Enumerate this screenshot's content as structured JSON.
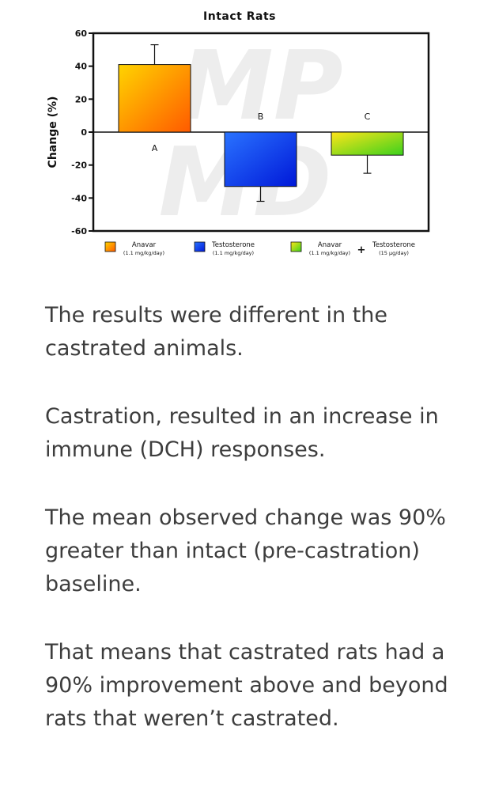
{
  "chart_data": {
    "type": "bar",
    "title": "Intact Rats",
    "ylabel": "Change (%)",
    "xlabel": "",
    "ylim": [
      -60,
      60
    ],
    "yticks": [
      60,
      40,
      20,
      0,
      -20,
      -40,
      -60
    ],
    "grid": false,
    "categories": [
      "Anavar",
      "Testosterone",
      "Anavar + Testosterone"
    ],
    "values": [
      41,
      -33,
      -14
    ],
    "errors": [
      12,
      9,
      11
    ],
    "letters": [
      "A",
      "B",
      "C"
    ],
    "legend": [
      {
        "name": "Anavar",
        "dose": "(1.1 mg/kg/day)",
        "colors": [
          "#ffd400",
          "#ff5a00"
        ]
      },
      {
        "name": "Testosterone",
        "dose": "(1.1 mg/kg/day)",
        "colors": [
          "#2a73ff",
          "#0018d8"
        ]
      },
      {
        "name": "Anavar",
        "dose": "(1.1 mg/kg/day)",
        "colors": [
          "#ffe51a",
          "#3bd11c"
        ],
        "joiner": "+",
        "name2": "Testosterone",
        "dose2": "(15 µg/day)"
      }
    ],
    "watermark": "MP MD"
  },
  "article": {
    "paragraphs": [
      "The results were different in the castrated animals.",
      "Castration, resulted in an increase in immune (DCH) responses.",
      "The mean observed change was 90% greater than intact (pre-castration) baseline.",
      "That means that castrated rats had a 90% improvement above and beyond rats that weren’t castrated."
    ]
  }
}
